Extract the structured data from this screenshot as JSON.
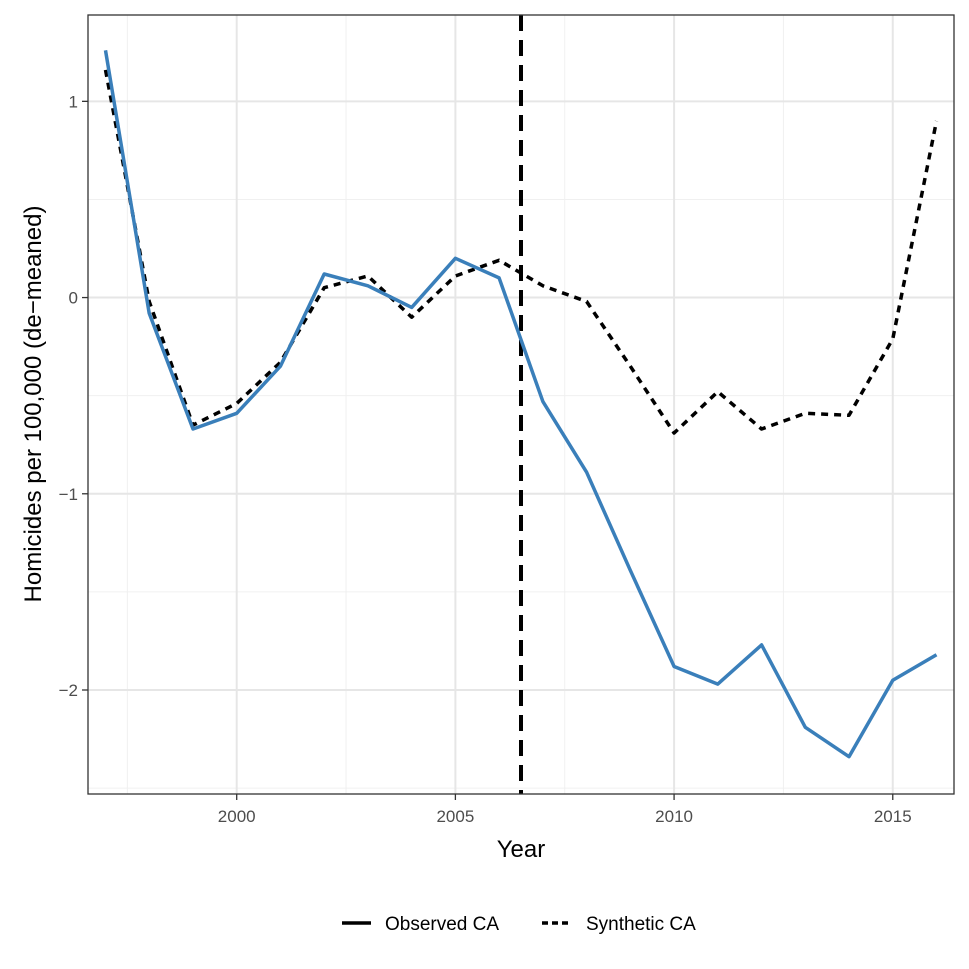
{
  "chart_data": {
    "type": "line",
    "title": "",
    "xlabel": "Year",
    "ylabel": "Homicides per 100,000 (de−meaned)",
    "xlim": [
      1996.6,
      2016.4
    ],
    "ylim": [
      -2.53,
      1.44
    ],
    "x_ticks": [
      2000,
      2005,
      2010,
      2015
    ],
    "x_tick_labels": [
      "2000",
      "2005",
      "2010",
      "2015"
    ],
    "y_ticks": [
      1,
      0,
      -1,
      -2
    ],
    "y_tick_labels": [
      "1",
      "0",
      "−1",
      "−2"
    ],
    "vline": {
      "x": 2006.5,
      "style": "dashed",
      "color": "#000000"
    },
    "grid": true,
    "legend_position": "bottom",
    "x": [
      1997,
      1998,
      1999,
      2000,
      2001,
      2002,
      2003,
      2004,
      2005,
      2006,
      2007,
      2008,
      2009,
      2010,
      2011,
      2012,
      2013,
      2014,
      2015,
      2016
    ],
    "series": [
      {
        "name": "Observed CA",
        "legend_swatch": "solid",
        "color": "#3a7fba",
        "style": "solid",
        "values": [
          1.26,
          -0.08,
          -0.67,
          -0.59,
          -0.35,
          0.12,
          0.06,
          -0.05,
          0.2,
          0.1,
          -0.53,
          -0.89,
          -1.39,
          -1.88,
          -1.97,
          -1.77,
          -2.19,
          -2.34,
          -1.95,
          -1.82
        ]
      },
      {
        "name": "Synthetic CA",
        "legend_swatch": "dashed",
        "color": "#000000",
        "style": "dashed",
        "values": [
          1.16,
          -0.02,
          -0.65,
          -0.54,
          -0.33,
          0.05,
          0.11,
          -0.1,
          0.11,
          0.19,
          0.06,
          -0.02,
          -0.35,
          -0.69,
          -0.48,
          -0.67,
          -0.59,
          -0.6,
          -0.21,
          0.9
        ]
      }
    ]
  }
}
